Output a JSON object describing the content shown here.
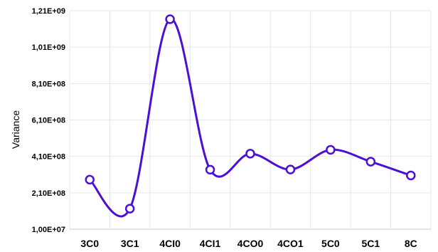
{
  "chart_data": {
    "type": "line",
    "title": "",
    "xlabel": "",
    "ylabel": "Variance",
    "categories": [
      "3C0",
      "3C1",
      "4CI0",
      "4CI1",
      "4CO0",
      "4CO1",
      "5C0",
      "5C1",
      "8C"
    ],
    "y_tick_labels": [
      "1,00E+07",
      "2,10E+08",
      "4,10E+08",
      "6,10E+08",
      "8,10E+08",
      "1,01E+09",
      "1,21E+09"
    ],
    "y_ticks": [
      10000000,
      210000000,
      410000000,
      610000000,
      810000000,
      1010000000,
      1210000000
    ],
    "ylim": [
      10000000,
      1210000000
    ],
    "series": [
      {
        "values": [
          282000000,
          123000000,
          1163000000,
          337000000,
          425000000,
          338000000,
          446000000,
          381000000,
          305000000
        ]
      }
    ],
    "smooth": true,
    "grid": true,
    "legend": "none",
    "colors": {
      "line": "#4b0fd6",
      "marker_fill": "#ffffff",
      "grid": "#e6e6e6",
      "axis": "#c8c8c8"
    }
  }
}
